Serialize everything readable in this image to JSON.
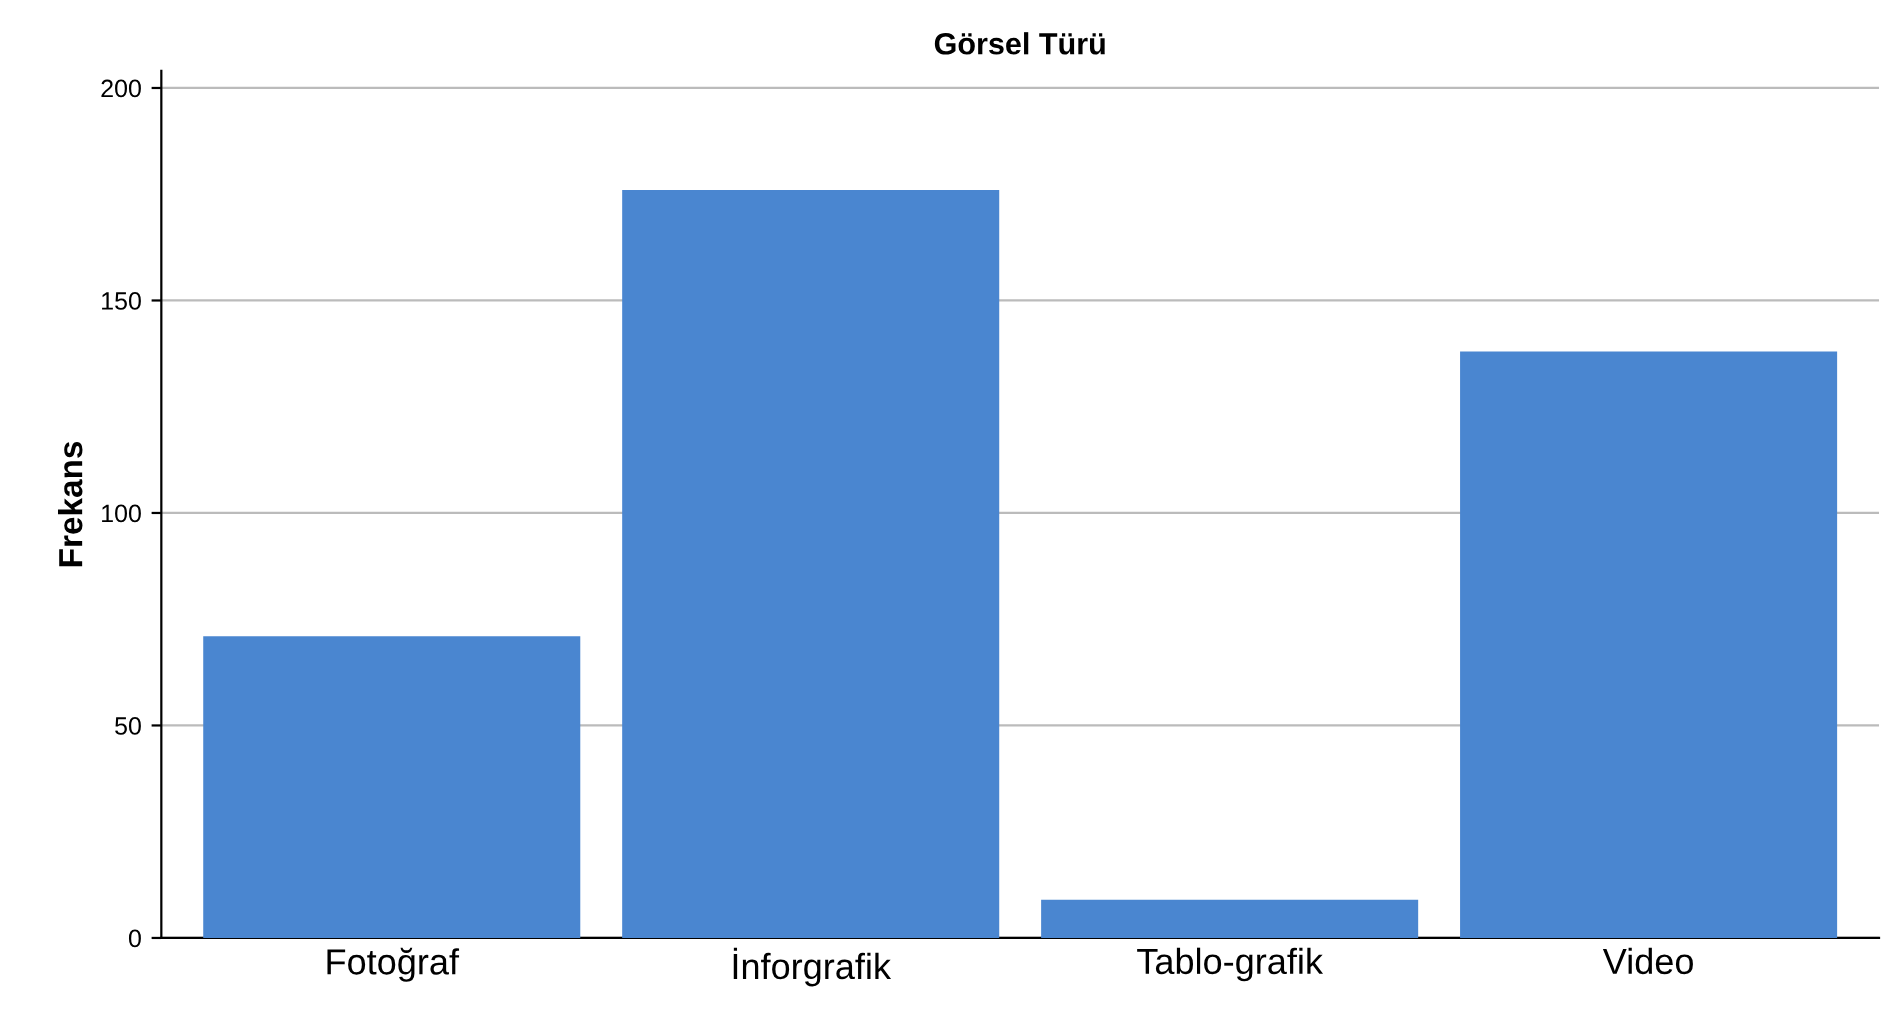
{
  "chart_data": {
    "type": "bar",
    "title": "Görsel Türü",
    "ylabel": "Frekans",
    "categories": [
      "Fotoğraf",
      "İnforgrafik",
      "Tablo-grafik",
      "Video"
    ],
    "values": [
      71,
      176,
      9,
      138
    ],
    "color": "#4a86d0",
    "ylim": [
      0,
      204
    ],
    "yticks": [
      0,
      50,
      100,
      150,
      200
    ],
    "grid": "y"
  }
}
